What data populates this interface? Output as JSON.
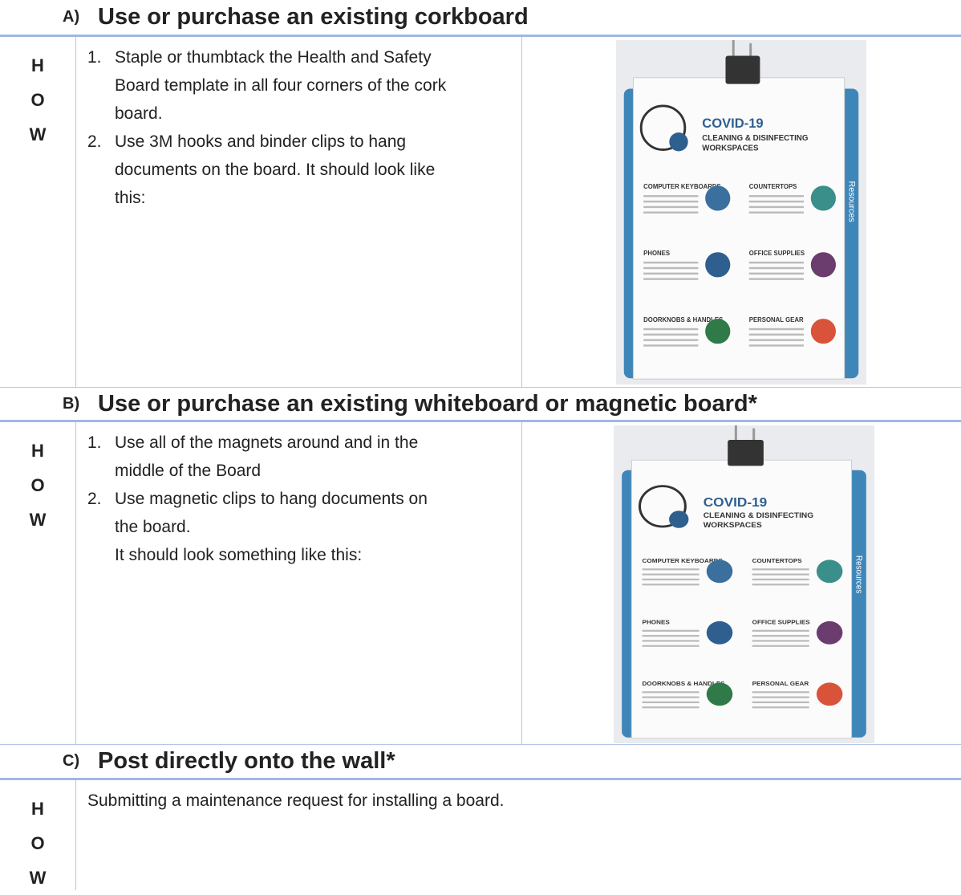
{
  "sections": [
    {
      "label": "A)",
      "title": "Use or purchase an existing corkboard",
      "side": [
        "H",
        "O",
        "W"
      ],
      "steps": [
        {
          "number": "1.",
          "text": "Staple or thumbtack the Health and Safety Board template in all four corners of the cork board."
        },
        {
          "number": "2.",
          "text": "Use 3M hooks and binder clips to hang documents on the board.  It should look like this:"
        }
      ]
    },
    {
      "label": "B)",
      "title": "Use or purchase an existing whiteboard or magnetic board*",
      "side": [
        "H",
        "O",
        "W"
      ],
      "steps": [
        {
          "number": "1.",
          "text": "Use all of the magnets around and in the middle of the Board"
        },
        {
          "number": "2.",
          "text": "Use magnetic clips to hang documents on the board.",
          "note": "It should look something like this:"
        }
      ]
    },
    {
      "label": "C)",
      "title": "Post directly onto the wall*",
      "side": [
        "H",
        "O",
        "W"
      ],
      "text": "Submitting a maintenance request for installing a board."
    }
  ],
  "poster": {
    "title": "COVID-19",
    "subtitle": [
      "CLEANING & DISINFECTING",
      "WORKSPACES"
    ],
    "tab": "Resources",
    "topics": [
      "COMPUTER KEYBOARDS",
      "COUNTERTOPS",
      "PHONES",
      "OFFICE SUPPLIES",
      "DOORKNOBS & HANDLES",
      "PERSONAL GEAR"
    ]
  }
}
